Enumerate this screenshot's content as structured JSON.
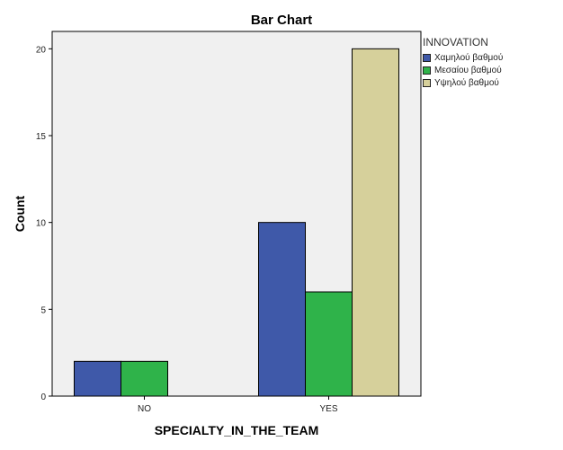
{
  "chart_data": {
    "type": "bar",
    "title": "Bar Chart",
    "xlabel": "SPECIALTY_IN_THE_TEAM",
    "ylabel": "Count",
    "categories": [
      "NO",
      "YES"
    ],
    "legend_title": "INNOVATION",
    "legend_position": "top-right",
    "series": [
      {
        "name": "Χαμηλού βαθμού",
        "color": "#3f59a9",
        "values": [
          2,
          10
        ]
      },
      {
        "name": "Μεσαίου βαθμού",
        "color": "#2fb34a",
        "values": [
          2,
          6
        ]
      },
      {
        "name": "Υψηλού βαθμού",
        "color": "#d6d09b",
        "values": [
          0,
          20
        ]
      }
    ],
    "ylim": [
      0,
      21
    ],
    "yticks": [
      0,
      5,
      10,
      15,
      20
    ],
    "grid": false,
    "plot_background": "#f0f0f0"
  }
}
